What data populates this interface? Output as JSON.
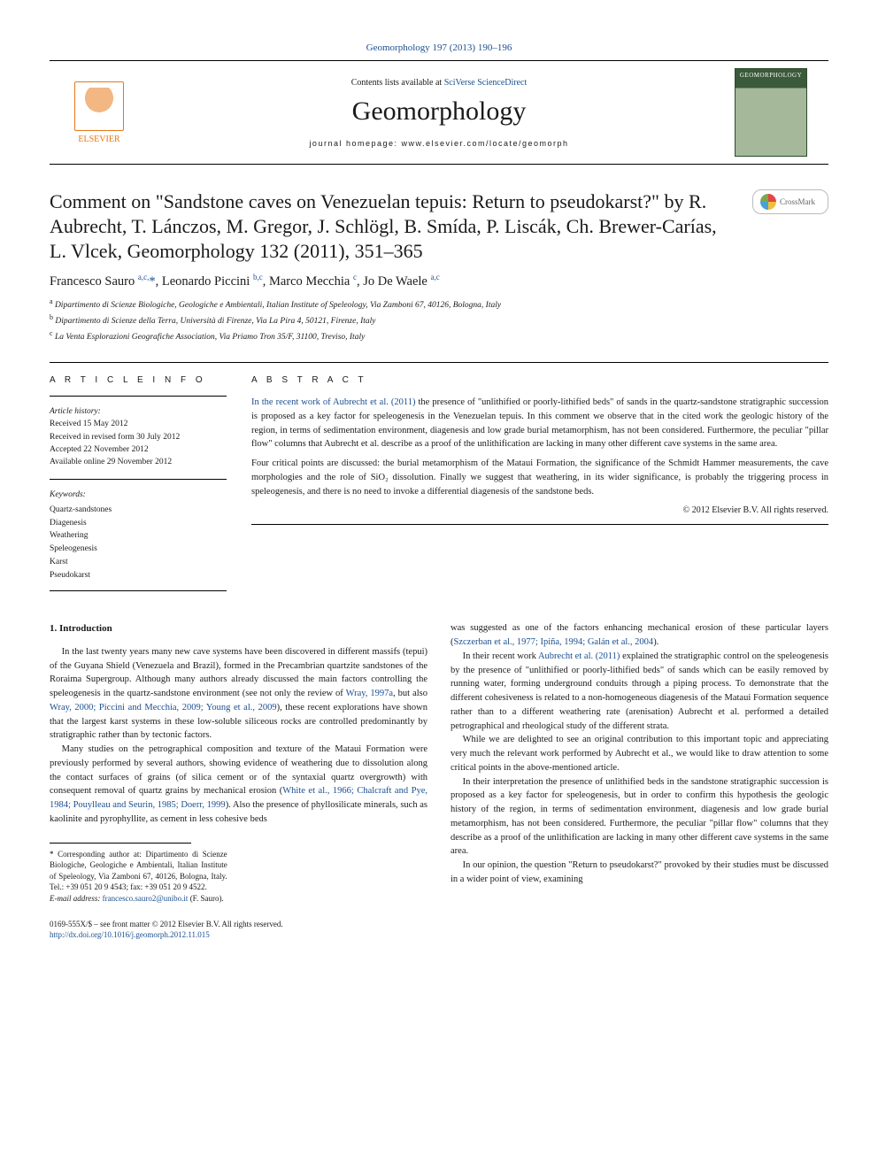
{
  "colors": {
    "link": "#1a4f8f",
    "text": "#1a1a1a",
    "elsevier_orange": "#e67817",
    "background": "#ffffff"
  },
  "typography": {
    "body_font": "Georgia / Times",
    "title_font": "Palatino",
    "body_size_pt": 10.5,
    "title_size_pt": 22,
    "journal_title_size_pt": 30
  },
  "journal_ref": "Geomorphology 197 (2013) 190–196",
  "masthead": {
    "publisher_name": "ELSEVIER",
    "contents_prefix": "Contents lists available at ",
    "contents_site": "SciVerse ScienceDirect",
    "journal_title": "Geomorphology",
    "homepage_line": "journal homepage: www.elsevier.com/locate/geomorph",
    "cover_label": "GEOMORPHOLOGY"
  },
  "crossmark_label": "CrossMark",
  "article": {
    "title": "Comment on \"Sandstone caves on Venezuelan tepuis: Return to pseudokarst?\" by R. Aubrecht, T. Lánczos, M. Gregor, J. Schlögl, B. Smída, P. Liscák, Ch. Brewer-Carías, L. Vlcek, Geomorphology 132 (2011), 351–365",
    "authors_html": "Francesco Sauro <sup>a,c,</sup><span class=\"star\">*</span>, Leonardo Piccini <sup>b,c</sup>, Marco Mecchia <sup>c</sup>, Jo De Waele <sup>a,c</sup>",
    "affiliations": {
      "a": "Dipartimento di Scienze Biologiche, Geologiche e Ambientali, Italian Institute of Speleology, Via Zamboni 67, 40126, Bologna, Italy",
      "b": "Dipartimento di Scienze della Terra, Università di Firenze, Via La Pira 4, 50121, Firenze, Italy",
      "c": "La Venta Esplorazioni Geografiche Association, Via Priamo Tron 35/F, 31100, Treviso, Italy"
    }
  },
  "info": {
    "heading": "A R T I C L E   I N F O",
    "history_label": "Article history:",
    "received": "Received 15 May 2012",
    "revised": "Received in revised form 30 July 2012",
    "accepted": "Accepted 22 November 2012",
    "online": "Available online 29 November 2012",
    "keywords_label": "Keywords:",
    "keywords": [
      "Quartz-sandstones",
      "Diagenesis",
      "Weathering",
      "Speleogenesis",
      "Karst",
      "Pseudokarst"
    ]
  },
  "abstract": {
    "heading": "A B S T R A C T",
    "p1": "In the recent work of Aubrecht et al. (2011) the presence of \"unlithified or poorly-lithified beds\" of sands in the quartz-sandstone stratigraphic succession is proposed as a key factor for speleogenesis in the Venezuelan tepuis. In this comment we observe that in the cited work the geologic history of the region, in terms of sedimentation environment, diagenesis and low grade burial metamorphism, has not been considered. Furthermore, the peculiar \"pillar flow\" columns that Aubrecht et al. describe as a proof of the unlithification are lacking in many other different cave systems in the same area.",
    "p2": "Four critical points are discussed: the burial metamorphism of the Mataui Formation, the significance of the Schmidt Hammer measurements, the cave morphologies and the role of SiO₂ dissolution. Finally we suggest that weathering, in its wider significance, is probably the triggering process in speleogenesis, and there is no need to invoke a differential diagenesis of the sandstone beds.",
    "copyright": "© 2012 Elsevier B.V. All rights reserved."
  },
  "body": {
    "section_heading": "1. Introduction",
    "p1": "In the last twenty years many new cave systems have been discovered in different massifs (tepui) of the Guyana Shield (Venezuela and Brazil), formed in the Precambrian quartzite sandstones of the Roraima Supergroup. Although many authors already discussed the main factors controlling the speleogenesis in the quartz-sandstone environment (see not only the review of ",
    "p1_cite1": "Wray, 1997a",
    "p1_mid": ", but also ",
    "p1_cite2": "Wray, 2000; Piccini and Mecchia, 2009; Young et al., 2009",
    "p1_end": "), these recent explorations have shown that the largest karst systems in these low-soluble siliceous rocks are controlled predominantly by stratigraphic rather than by tectonic factors.",
    "p2a": "Many studies on the petrographical composition and texture of the Mataui Formation were previously performed by several authors, showing evidence of weathering due to dissolution along the contact surfaces of grains (of silica cement or of the syntaxial quartz overgrowth) with consequent removal of quartz grains by mechanical erosion (",
    "p2_cite": "White et al., 1966; Chalcraft and Pye, 1984; Pouylleau and Seurin, 1985; Doerr, 1999",
    "p2b": "). Also the presence of phyllosilicate minerals, such as kaolinite and pyrophyllite, as cement in less cohesive beds",
    "p2c": "was suggested as one of the factors enhancing mechanical erosion of these particular layers (",
    "p2_cite2": "Szczerban et al., 1977; Ipiña, 1994; Galán et al., 2004",
    "p2d": ").",
    "p3a": "In their recent work ",
    "p3_cite": "Aubrecht et al. (2011)",
    "p3b": " explained the stratigraphic control on the speleogenesis by the presence of \"unlithified or poorly-lithified beds\" of sands which can be easily removed by running water, forming underground conduits through a piping process. To demonstrate that the different cohesiveness is related to a non-homogeneous diagenesis of the Mataui Formation sequence rather than to a different weathering rate (arenisation) Aubrecht et al. performed a detailed petrographical and rheological study of the different strata.",
    "p4": "While we are delighted to see an original contribution to this important topic and appreciating very much the relevant work performed by Aubrecht et al., we would like to draw attention to some critical points in the above-mentioned article.",
    "p5": "In their interpretation the presence of unlithified beds in the sandstone stratigraphic succession is proposed as a key factor for speleogenesis, but in order to confirm this hypothesis the geologic history of the region, in terms of sedimentation environment, diagenesis and low grade burial metamorphism, has not been considered. Furthermore, the peculiar \"pillar flow\" columns that they describe as a proof of the unlithification are lacking in many other different cave systems in the same area.",
    "p6": "In our opinion, the question \"Return to pseudokarst?\" provoked by their studies must be discussed in a wider point of view, examining"
  },
  "footnotes": {
    "corr": "Corresponding author at: Dipartimento di Scienze Biologiche, Geologiche e Ambientali, Italian Institute of Speleology, Via Zamboni 67, 40126, Bologna, Italy. Tel.: +39 051 20 9 4543; fax: +39 051 20 9 4522.",
    "email_label": "E-mail address:",
    "email": "francesco.sauro2@unibo.it",
    "email_who": "(F. Sauro)."
  },
  "footer": {
    "issn_line": "0169-555X/$ – see front matter © 2012 Elsevier B.V. All rights reserved.",
    "doi": "http://dx.doi.org/10.1016/j.geomorph.2012.11.015"
  }
}
